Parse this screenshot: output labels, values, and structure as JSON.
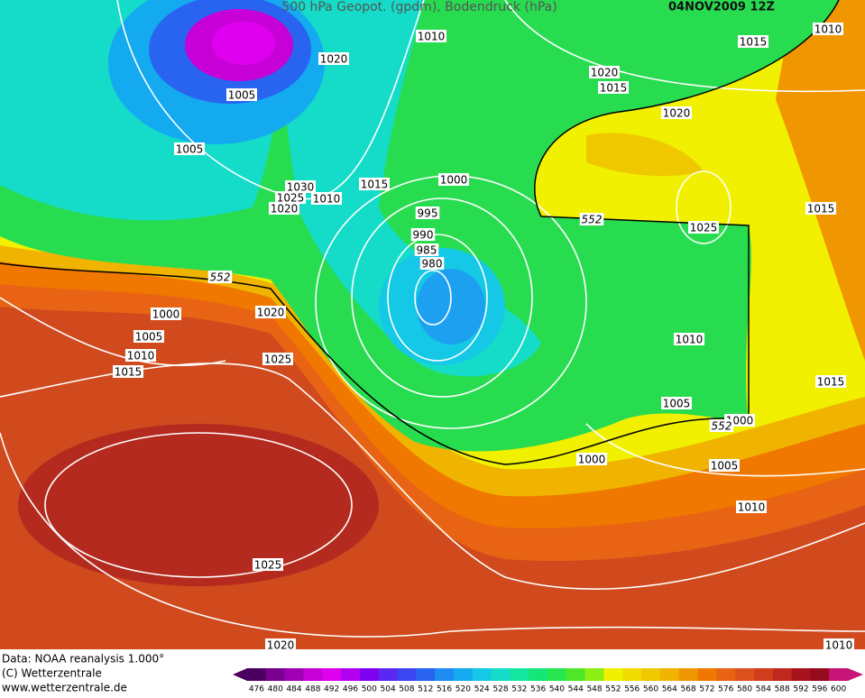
{
  "header": {
    "title": "500 hPa Geopot. (gpdm), Bodendruck (hPa)",
    "date": "04NOV2009 12Z"
  },
  "isobar_labels": [
    1010,
    1020,
    1015,
    1010,
    1020,
    1015,
    1005,
    1020,
    1005,
    1000,
    1015,
    1030,
    1025,
    1010,
    1020,
    995,
    1025,
    1015,
    990,
    985,
    980,
    1000,
    1020,
    1005,
    1010,
    1015,
    1025,
    1010,
    1015,
    1005,
    1000,
    1000,
    1005,
    1010,
    1025,
    1020,
    1010
  ],
  "geopotential_labels": [
    552,
    552,
    552
  ],
  "footer": {
    "source": "Data: NOAA reanalysis 1.000°",
    "copyright": "(C) Wetterzentrale",
    "url": "www.wetterzentrale.de"
  },
  "colorbar": {
    "values": [
      476,
      480,
      484,
      488,
      492,
      496,
      500,
      504,
      508,
      512,
      516,
      520,
      524,
      528,
      532,
      536,
      540,
      544,
      548,
      552,
      556,
      560,
      564,
      568,
      572,
      576,
      580,
      584,
      588,
      592,
      596,
      600
    ],
    "colors": [
      "#4b0060",
      "#7a0090",
      "#a000b4",
      "#c800d8",
      "#e000f0",
      "#b400f0",
      "#8000f0",
      "#5a28f0",
      "#3c46f0",
      "#2864f0",
      "#1e8cf0",
      "#14aaf0",
      "#14c8e6",
      "#14dcc8",
      "#14e6a0",
      "#14e678",
      "#28e650",
      "#50e628",
      "#8cf014",
      "#f0f000",
      "#f0dc00",
      "#f0c800",
      "#f0b400",
      "#f09600",
      "#f07800",
      "#e86414",
      "#dc501e",
      "#d03c1e",
      "#c0281e",
      "#a8141e",
      "#960a1e",
      "#c81478"
    ]
  }
}
